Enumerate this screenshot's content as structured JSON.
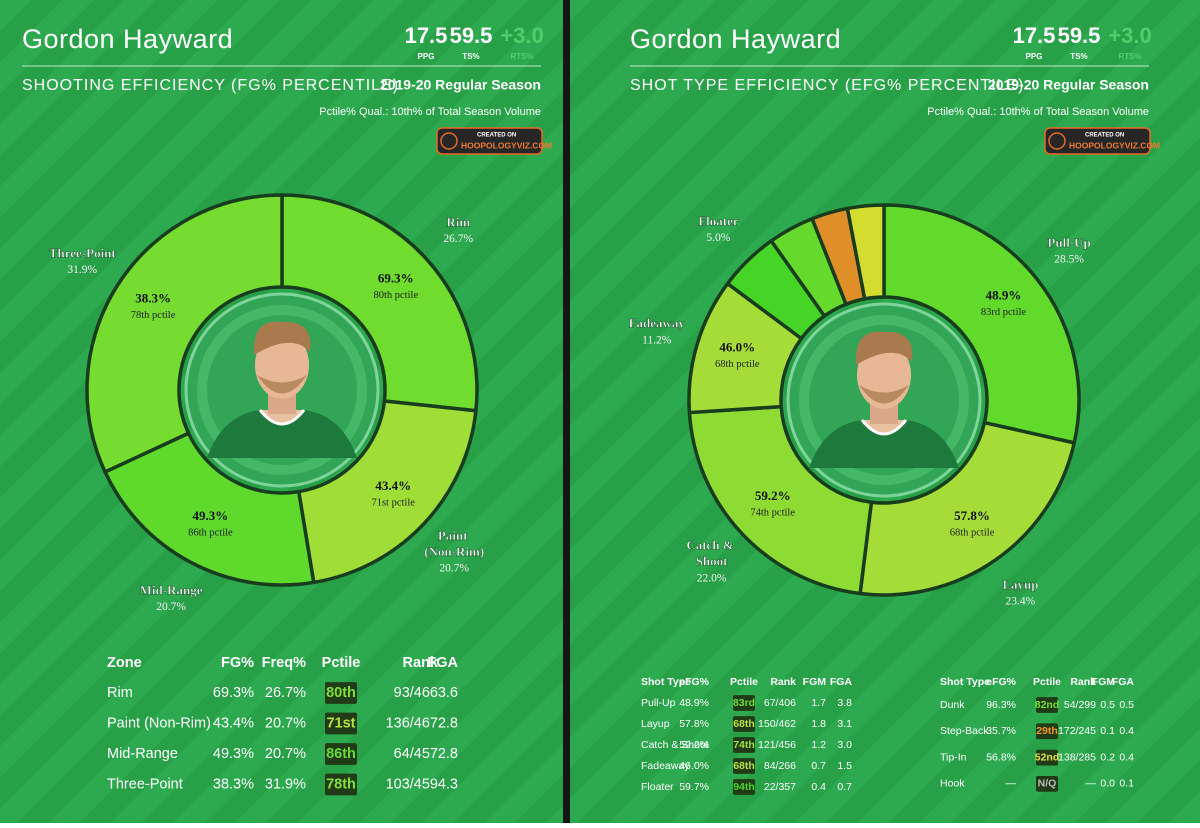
{
  "panels": [
    {
      "header": {
        "player": "Gordon Hayward",
        "stats": [
          {
            "value": "17.5",
            "label": "PPG"
          },
          {
            "value": "59.5",
            "label": "TS%"
          },
          {
            "value": "+3.0",
            "label": "RTS%"
          }
        ],
        "subtitle": "SHOOTING EFFICIENCY (FG% PERCENTILE)",
        "season": "2019-20 Regular Season",
        "qualifier": "Pctile% Qual.: 10th% of Total Season Volume",
        "badge_top": "CREATED ON",
        "badge_main": "HOOPOLOGYVIZ.COM"
      },
      "tables": [
        {
          "columns": [
            "Zone",
            "FG%",
            "Freq%",
            "Pctile",
            "Rank",
            "FGA"
          ],
          "rows": [
            [
              "Rim",
              "69.3%",
              "26.7%",
              "80th",
              "93/466",
              "3.6"
            ],
            [
              "Paint (Non-Rim)",
              "43.4%",
              "20.7%",
              "71st",
              "136/467",
              "2.8"
            ],
            [
              "Mid-Range",
              "49.3%",
              "20.7%",
              "86th",
              "64/457",
              "2.8"
            ],
            [
              "Three-Point",
              "38.3%",
              "31.9%",
              "78th",
              "103/459",
              "4.3"
            ]
          ],
          "chip_colors": [
            "#7ee03a",
            "#b6e23c",
            "#66dc34",
            "#86e03a"
          ]
        }
      ]
    },
    {
      "header": {
        "player": "Gordon Hayward",
        "stats": [
          {
            "value": "17.5",
            "label": "PPG"
          },
          {
            "value": "59.5",
            "label": "TS%"
          },
          {
            "value": "+3.0",
            "label": "RTS%"
          }
        ],
        "subtitle": "SHOT TYPE EFFICIENCY (EFG% PERCENTILE)",
        "season": "2019-20 Regular Season",
        "qualifier": "Pctile% Qual.: 10th% of Total Season Volume",
        "badge_top": "CREATED ON",
        "badge_main": "HOOPOLOGYVIZ.COM"
      },
      "tables": [
        {
          "columns": [
            "Shot Type",
            "eFG%",
            "Pctile",
            "Rank",
            "FGM",
            "FGA"
          ],
          "rows": [
            [
              "Pull-Up",
              "48.9%",
              "83rd",
              "67/406",
              "1.7",
              "3.8"
            ],
            [
              "Layup",
              "57.8%",
              "68th",
              "150/462",
              "1.8",
              "3.1"
            ],
            [
              "Catch & Shoot",
              "59.2%",
              "74th",
              "121/456",
              "1.2",
              "3.0"
            ],
            [
              "Fadeaway",
              "46.0%",
              "68th",
              "84/266",
              "0.7",
              "1.5"
            ],
            [
              "Floater",
              "59.7%",
              "94th",
              "22/357",
              "0.4",
              "0.7"
            ]
          ],
          "chip_colors": [
            "#6ee036",
            "#bde23e",
            "#a2e03a",
            "#bde23e",
            "#4ad82e"
          ]
        },
        {
          "columns": [
            "Shot Type",
            "eFG%",
            "Pctile",
            "Rank",
            "FGM",
            "FGA"
          ],
          "rows": [
            [
              "Dunk",
              "96.3%",
              "82nd",
              "54/299",
              "0.5",
              "0.5"
            ],
            [
              "Step-Back",
              "35.7%",
              "29th",
              "172/245",
              "0.1",
              "0.4"
            ],
            [
              "Tip-In",
              "56.8%",
              "52nd",
              "138/285",
              "0.2",
              "0.4"
            ],
            [
              "Hook",
              "—",
              "N/Q",
              "—",
              "0.0",
              "0.1"
            ]
          ],
          "chip_colors": [
            "#74e036",
            "#f0962c",
            "#e6e03a",
            "#bbbbbb"
          ]
        }
      ]
    }
  ],
  "chart_data": [
    {
      "type": "donut",
      "categories": [
        "Rim",
        "Paint (Non-Rim)",
        "Mid-Range",
        "Three-Point"
      ],
      "values": [
        26.7,
        20.7,
        20.7,
        31.9
      ],
      "value_labels": [
        "26.7%",
        "20.7%",
        "20.7%",
        "31.9%"
      ],
      "colors": [
        "#6fdc2e",
        "#9fde36",
        "#5ed92c",
        "#76dc30"
      ],
      "center_labels": [
        "69.3%",
        "43.4%",
        "49.3%",
        "38.3%"
      ],
      "center_sublabels": [
        "80th pctile",
        "71st pctile",
        "86th pctile",
        "78th pctile"
      ]
    },
    {
      "type": "donut",
      "categories": [
        "Pull-Up",
        "Layup",
        "Catch & Shoot",
        "Fadeaway",
        "Floater",
        null,
        null,
        null
      ],
      "values": [
        28.5,
        23.4,
        22.0,
        11.2,
        5.0,
        3.8,
        3.0,
        3.0
      ],
      "value_labels": [
        "28.5%",
        "23.4%",
        "22.0%",
        "11.2%",
        "5.0%",
        null,
        null,
        null
      ],
      "colors": [
        "#62da2c",
        "#a6dc38",
        "#8edb34",
        "#a6dc38",
        "#46d426",
        "#66da2c",
        "#e08e28",
        "#d4dc30"
      ],
      "center_labels": [
        "48.9%",
        "57.8%",
        "59.2%",
        "46.0%",
        null,
        null,
        null,
        null
      ],
      "center_sublabels": [
        "83rd pctile",
        "68th pctile",
        "74th pctile",
        "68th pctile",
        null,
        null,
        null,
        null
      ]
    }
  ]
}
